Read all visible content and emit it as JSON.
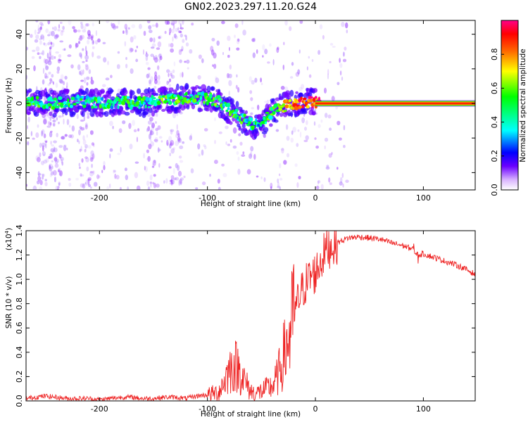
{
  "figure": {
    "title": "GN02.2023.297.11.20.G24"
  },
  "chart_data": [
    {
      "type": "heatmap",
      "xlabel": "Height of straight line (km)",
      "ylabel": "Frequency (Hz)",
      "xlim": [
        -268,
        148
      ],
      "ylim": [
        -50,
        48
      ],
      "xticks": [
        -200,
        -100,
        0,
        100
      ],
      "yticks": [
        -40,
        -20,
        0,
        20,
        40
      ],
      "xtick_labels": [
        "-200",
        "-100",
        "0",
        "100"
      ],
      "ytick_labels": [
        "-40",
        "-20",
        "0",
        "20",
        "40"
      ],
      "colorbar": {
        "label": "Normalized spectral amplitude",
        "range": [
          0,
          1
        ],
        "ticks": [
          0.0,
          0.2,
          0.4,
          0.6,
          0.8
        ],
        "tick_labels": [
          "0.0",
          "0.2",
          "0.4",
          "0.6",
          "0.8"
        ],
        "colors": [
          "#ffffff",
          "#6a00ff",
          "#0000ff",
          "#00ffff",
          "#00ff00",
          "#ffff00",
          "#ff6600",
          "#ff0000",
          "#ff0088"
        ]
      },
      "ridge": {
        "x": [
          -268,
          -240,
          -220,
          -200,
          -180,
          -160,
          -140,
          -120,
          -100,
          -90,
          -80,
          -70,
          -60,
          -50,
          -45,
          -40,
          -35,
          -30,
          -25,
          -20,
          -10,
          0,
          50,
          100,
          148
        ],
        "y": [
          1,
          0,
          1,
          0,
          1,
          0,
          2,
          3,
          3,
          1,
          -4,
          -8,
          -12,
          -13,
          -8,
          -5,
          -3,
          -2,
          -1,
          0,
          1,
          1,
          0,
          0,
          0
        ],
        "intensity": [
          0.45,
          0.45,
          0.45,
          0.45,
          0.45,
          0.45,
          0.5,
          0.5,
          0.5,
          0.5,
          0.45,
          0.45,
          0.45,
          0.4,
          0.45,
          0.55,
          0.65,
          0.7,
          0.75,
          0.8,
          0.85,
          0.9,
          0.9,
          0.9,
          0.9
        ]
      }
    },
    {
      "type": "line",
      "xlabel": "Height of straight line (km)",
      "ylabel": "SNR (10 * v/v)",
      "y_multiplier": "(x10",
      "y_multiplier_exponent": "4",
      "y_multiplier_close": ")",
      "xlim": [
        -268,
        148
      ],
      "ylim": [
        0,
        1.4
      ],
      "xticks": [
        -200,
        -100,
        0,
        100
      ],
      "yticks": [
        0.0,
        0.2,
        0.4,
        0.6,
        0.8,
        1.0,
        1.2,
        1.4
      ],
      "xtick_labels": [
        "-200",
        "-100",
        "0",
        "100"
      ],
      "ytick_labels": [
        "0.0",
        "0.2",
        "0.4",
        "0.6",
        "0.8",
        "1.0",
        "1.2",
        "1.4"
      ],
      "color": "#ee2222",
      "series": [
        {
          "x": [
            -268,
            -260,
            -250,
            -240,
            -230,
            -220,
            -210,
            -200,
            -190,
            -180,
            -170,
            -160,
            -150,
            -140,
            -130,
            -120,
            -110,
            -100,
            -90,
            -85,
            -80,
            -75,
            -70,
            -65,
            -60,
            -55,
            -50,
            -45,
            -40,
            -35,
            -30,
            -25,
            -20,
            -15,
            -10,
            -5,
            0,
            5,
            10,
            20,
            30,
            40,
            50,
            60,
            70,
            80,
            90,
            95,
            100,
            110,
            120,
            130,
            140,
            148
          ],
          "values": [
            0.02,
            0.03,
            0.04,
            0.03,
            0.02,
            0.02,
            0.02,
            0.01,
            0.02,
            0.03,
            0.03,
            0.02,
            0.02,
            0.03,
            0.03,
            0.02,
            0.04,
            0.05,
            0.07,
            0.15,
            0.25,
            0.3,
            0.25,
            0.15,
            0.08,
            0.06,
            0.08,
            0.1,
            0.12,
            0.2,
            0.35,
            0.5,
            0.7,
            0.85,
            0.95,
            1.02,
            1.05,
            1.15,
            1.25,
            1.3,
            1.34,
            1.35,
            1.34,
            1.33,
            1.3,
            1.28,
            1.25,
            1.2,
            1.21,
            1.18,
            1.15,
            1.12,
            1.08,
            1.04
          ]
        }
      ]
    }
  ]
}
